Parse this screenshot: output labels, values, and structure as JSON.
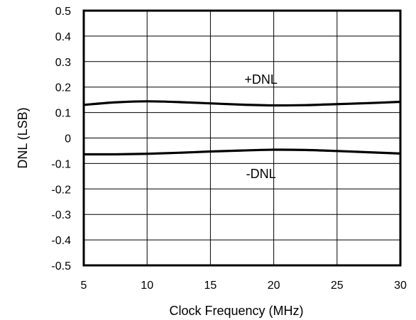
{
  "chart_data": {
    "type": "line",
    "title": "",
    "xlabel": "Clock Frequency (MHz)",
    "ylabel": "DNL (LSB)",
    "xlim": [
      5,
      30
    ],
    "ylim": [
      -0.5,
      0.5
    ],
    "x_ticks": [
      5,
      10,
      15,
      20,
      25,
      30
    ],
    "y_ticks": [
      0.5,
      0.4,
      0.3,
      0.2,
      0.1,
      0,
      -0.1,
      -0.2,
      -0.3,
      -0.4,
      -0.5
    ],
    "x_tick_labels": [
      "5",
      "10",
      "15",
      "20",
      "25",
      "30"
    ],
    "y_tick_labels": [
      "0.5",
      "0.4",
      "0.3",
      "0.2",
      "0.1",
      "0",
      "-0.1",
      "-0.2",
      "-0.3",
      "-0.4",
      "-0.5"
    ],
    "grid": true,
    "series": [
      {
        "name": "+DNL",
        "x": [
          5,
          7.5,
          10,
          12.5,
          15,
          17.5,
          20,
          22.5,
          25,
          27.5,
          30
        ],
        "y": [
          0.13,
          0.14,
          0.144,
          0.141,
          0.136,
          0.131,
          0.128,
          0.129,
          0.133,
          0.137,
          0.142
        ]
      },
      {
        "name": "-DNL",
        "x": [
          5,
          7.5,
          10,
          12.5,
          15,
          17.5,
          20,
          22.5,
          25,
          27.5,
          30
        ],
        "y": [
          -0.064,
          -0.064,
          -0.062,
          -0.058,
          -0.053,
          -0.049,
          -0.046,
          -0.047,
          -0.051,
          -0.056,
          -0.061
        ]
      }
    ],
    "annotations": [
      {
        "text": "+DNL",
        "x": 20,
        "y": 0.23
      },
      {
        "text": "-DNL",
        "x": 20,
        "y": -0.14
      }
    ],
    "colors": {
      "line": "#000000",
      "grid": "#000000",
      "frame": "#000000"
    }
  }
}
